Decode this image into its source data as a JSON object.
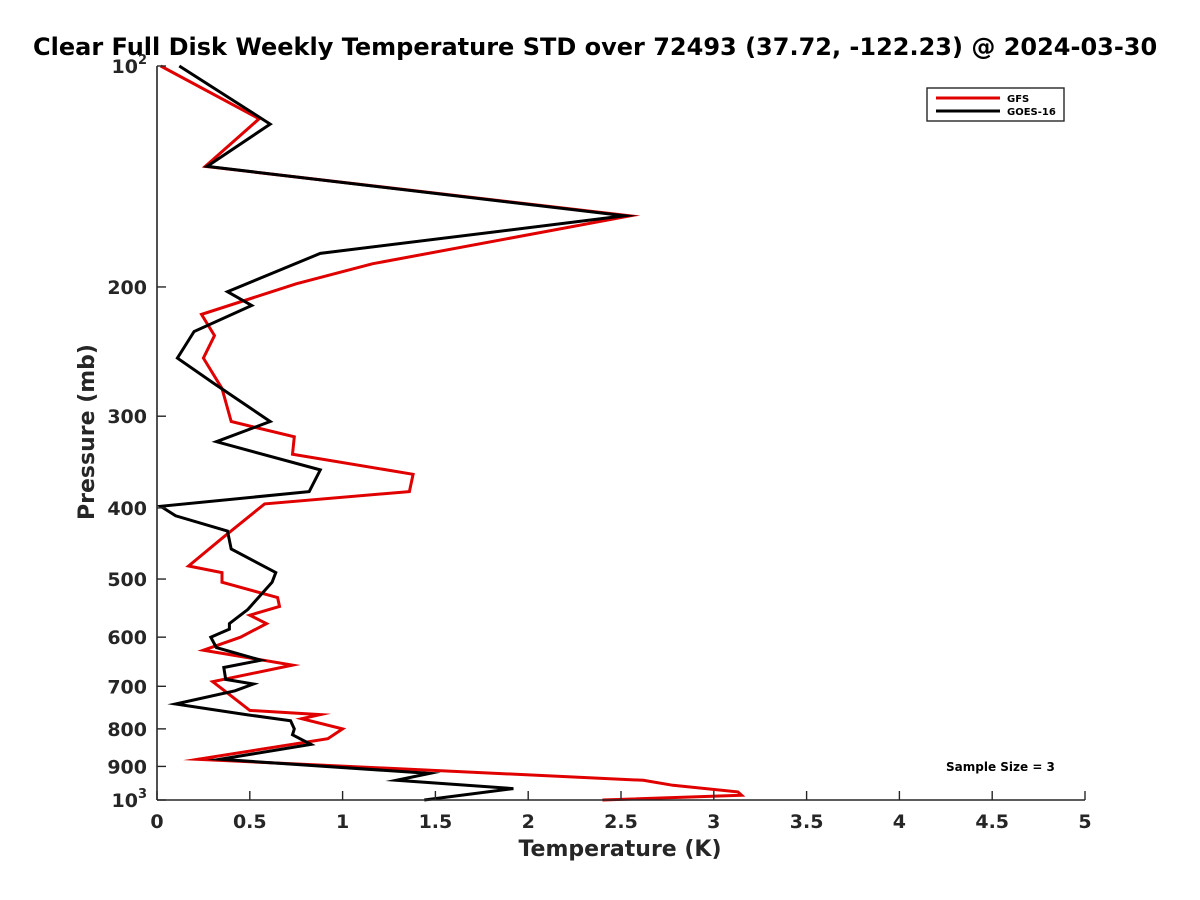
{
  "chart_data": {
    "type": "line",
    "title": "Clear Full Disk Weekly Temperature STD over 72493 (37.72, -122.23) @ 2024-03-30",
    "xlabel": "Temperature (K)",
    "ylabel": "Pressure (mb)",
    "xlim": [
      0,
      5
    ],
    "ylim": [
      100,
      1000
    ],
    "yscale": "log",
    "y_reversed": true,
    "grid": false,
    "legend_position": "top-right",
    "x_ticks": [
      "0",
      "0.5",
      "1",
      "1.5",
      "2",
      "2.5",
      "3",
      "3.5",
      "4",
      "4.5",
      "5"
    ],
    "y_ticks": [
      {
        "value": 100,
        "base": "10",
        "exp": "2"
      },
      {
        "value": 200,
        "label": "200"
      },
      {
        "value": 300,
        "label": "300"
      },
      {
        "value": 400,
        "label": "400"
      },
      {
        "value": 500,
        "label": "500"
      },
      {
        "value": 600,
        "label": "600"
      },
      {
        "value": 700,
        "label": "700"
      },
      {
        "value": 800,
        "label": "800"
      },
      {
        "value": 900,
        "label": "900"
      },
      {
        "value": 1000,
        "base": "10",
        "exp": "3"
      }
    ],
    "annotation": "Sample Size = 3",
    "series": [
      {
        "name": "GFS",
        "color": "#e00000",
        "points": [
          [
            0.02,
            100
          ],
          [
            0.55,
            118
          ],
          [
            0.26,
            137
          ],
          [
            2.55,
            160
          ],
          [
            1.16,
            186
          ],
          [
            0.75,
            198
          ],
          [
            0.24,
            218
          ],
          [
            0.31,
            233
          ],
          [
            0.25,
            250
          ],
          [
            0.35,
            275
          ],
          [
            0.4,
            305
          ],
          [
            0.74,
            320
          ],
          [
            0.73,
            338
          ],
          [
            1.38,
            360
          ],
          [
            1.36,
            380
          ],
          [
            0.58,
            395
          ],
          [
            0.35,
            440
          ],
          [
            0.17,
            480
          ],
          [
            0.35,
            490
          ],
          [
            0.35,
            505
          ],
          [
            0.65,
            530
          ],
          [
            0.66,
            545
          ],
          [
            0.5,
            560
          ],
          [
            0.59,
            575
          ],
          [
            0.45,
            600
          ],
          [
            0.25,
            625
          ],
          [
            0.73,
            655
          ],
          [
            0.3,
            690
          ],
          [
            0.38,
            715
          ],
          [
            0.5,
            755
          ],
          [
            0.88,
            765
          ],
          [
            0.78,
            775
          ],
          [
            1.0,
            800
          ],
          [
            0.92,
            825
          ],
          [
            0.22,
            880
          ],
          [
            2.62,
            940
          ],
          [
            2.78,
            955
          ],
          [
            3.13,
            975
          ],
          [
            3.15,
            985
          ],
          [
            2.4,
            1000
          ]
        ]
      },
      {
        "name": "GOES-16",
        "color": "#000000",
        "points": [
          [
            0.12,
            100
          ],
          [
            0.61,
            120
          ],
          [
            0.27,
            137
          ],
          [
            2.52,
            160
          ],
          [
            0.88,
            180
          ],
          [
            0.38,
            203
          ],
          [
            0.51,
            212
          ],
          [
            0.2,
            230
          ],
          [
            0.11,
            250
          ],
          [
            0.3,
            270
          ],
          [
            0.61,
            305
          ],
          [
            0.32,
            325
          ],
          [
            0.88,
            355
          ],
          [
            0.82,
            380
          ],
          [
            0.02,
            398
          ],
          [
            0.1,
            410
          ],
          [
            0.38,
            430
          ],
          [
            0.4,
            455
          ],
          [
            0.64,
            490
          ],
          [
            0.62,
            505
          ],
          [
            0.49,
            550
          ],
          [
            0.39,
            575
          ],
          [
            0.39,
            585
          ],
          [
            0.29,
            600
          ],
          [
            0.32,
            620
          ],
          [
            0.56,
            645
          ],
          [
            0.36,
            660
          ],
          [
            0.37,
            685
          ],
          [
            0.52,
            695
          ],
          [
            0.42,
            710
          ],
          [
            0.1,
            740
          ],
          [
            0.48,
            765
          ],
          [
            0.72,
            780
          ],
          [
            0.74,
            800
          ],
          [
            0.73,
            815
          ],
          [
            0.83,
            840
          ],
          [
            0.34,
            880
          ],
          [
            1.47,
            920
          ],
          [
            1.29,
            940
          ],
          [
            1.92,
            965
          ],
          [
            1.44,
            1000
          ]
        ]
      }
    ]
  }
}
